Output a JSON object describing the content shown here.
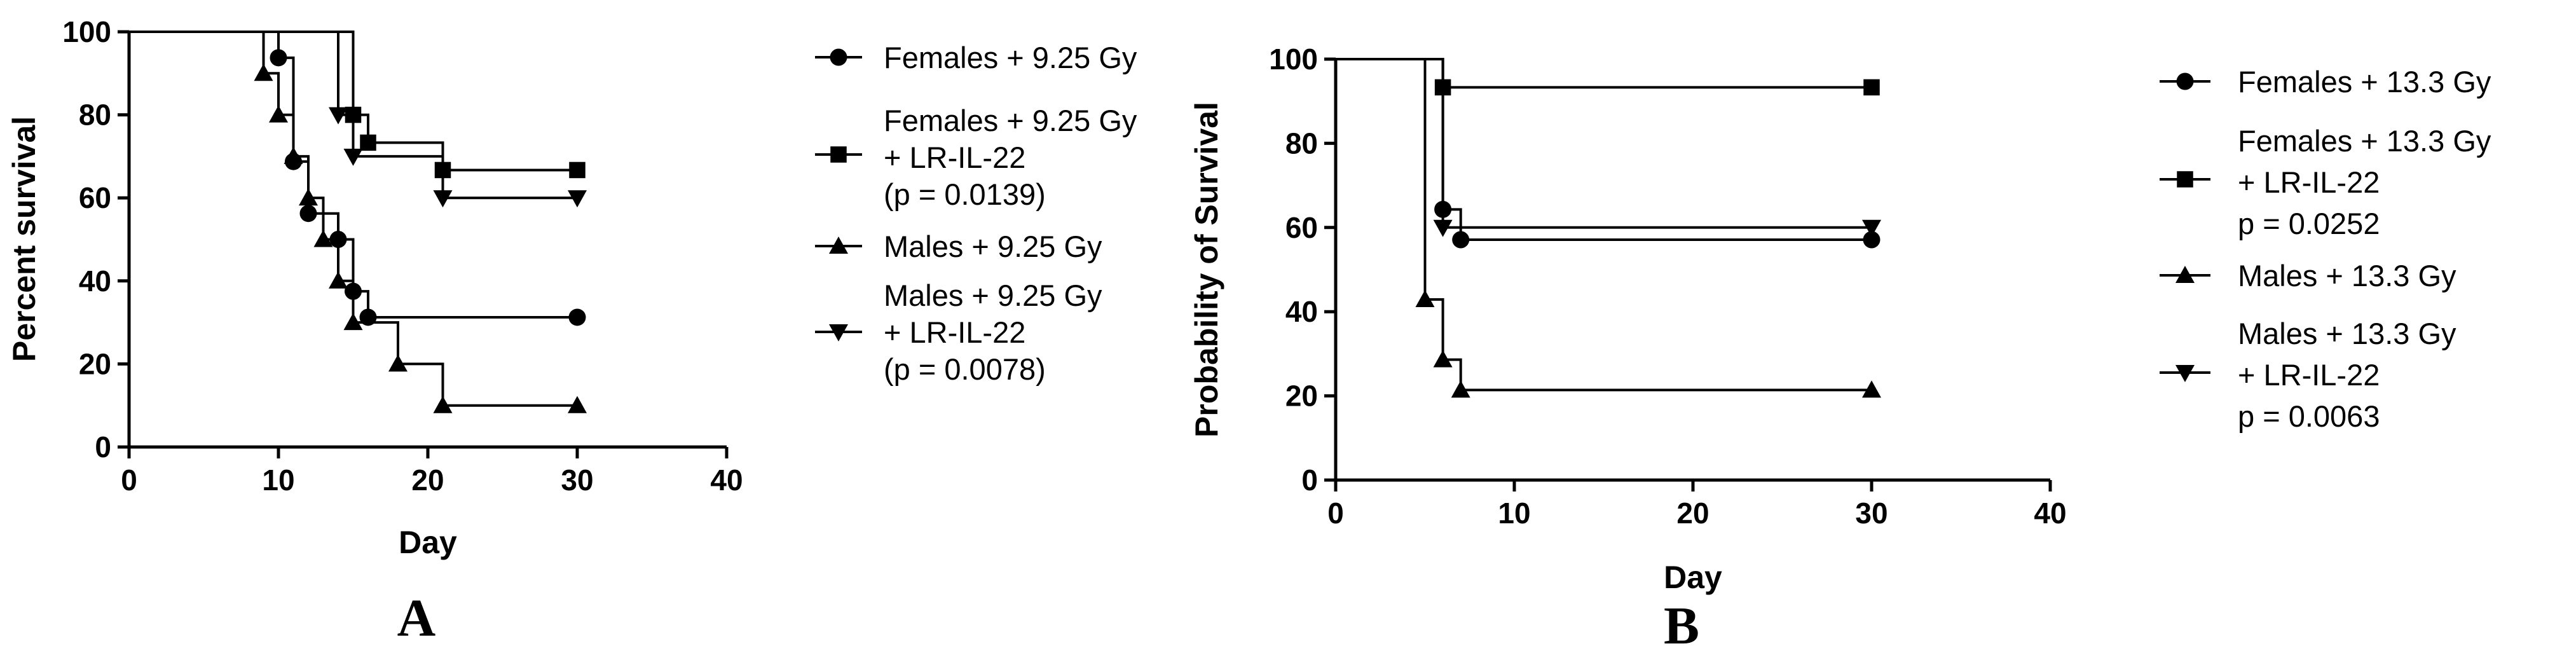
{
  "chart_data": [
    {
      "type": "line",
      "panel_label": "A",
      "xlabel": "Day",
      "ylabel": "Percent survival",
      "xlim": [
        0,
        40
      ],
      "ylim": [
        0,
        100
      ],
      "x_ticks": [
        "0",
        "10",
        "20",
        "30",
        "40"
      ],
      "y_ticks": [
        "0",
        "20",
        "40",
        "60",
        "80",
        "100"
      ],
      "grid": false,
      "legend_position": "right",
      "series": [
        {
          "name": "Females + 9.25 Gy",
          "marker": "circle",
          "steps": [
            [
              0,
              100
            ],
            [
              10,
              93.75
            ],
            [
              11,
              68.75
            ],
            [
              12,
              56.25
            ],
            [
              14,
              50
            ],
            [
              15,
              37.5
            ],
            [
              16,
              31.25
            ],
            [
              30,
              31.25
            ]
          ]
        },
        {
          "name": "Females + 9.25 Gy + LR-IL-22 (p = 0.0139)",
          "legend_lines": [
            "Females + 9.25 Gy",
            "+ LR-IL-22",
            "(p = 0.0139)"
          ],
          "marker": "square",
          "steps": [
            [
              0,
              100
            ],
            [
              15,
              80
            ],
            [
              16,
              73.3
            ],
            [
              21,
              66.7
            ],
            [
              30,
              66.7
            ]
          ]
        },
        {
          "name": "Males + 9.25 Gy",
          "marker": "triangle-up",
          "steps": [
            [
              0,
              100
            ],
            [
              9,
              90
            ],
            [
              10,
              80
            ],
            [
              11,
              70
            ],
            [
              12,
              60
            ],
            [
              13,
              50
            ],
            [
              14,
              40
            ],
            [
              15,
              30
            ],
            [
              18,
              20
            ],
            [
              21,
              10
            ],
            [
              30,
              10
            ]
          ]
        },
        {
          "name": "Males + 9.25 Gy + LR-IL-22 (p = 0.0078)",
          "legend_lines": [
            "Males + 9.25 Gy",
            "+ LR-IL-22",
            "(p = 0.0078)"
          ],
          "marker": "triangle-down",
          "steps": [
            [
              0,
              100
            ],
            [
              14,
              80
            ],
            [
              15,
              70
            ],
            [
              21,
              60
            ],
            [
              30,
              60
            ]
          ]
        }
      ]
    },
    {
      "type": "line",
      "panel_label": "B",
      "xlabel": "Day",
      "ylabel": "Probability of Survival",
      "xlim": [
        0,
        40
      ],
      "ylim": [
        0,
        100
      ],
      "x_ticks": [
        "0",
        "10",
        "20",
        "30",
        "40"
      ],
      "y_ticks": [
        "0",
        "20",
        "40",
        "60",
        "80",
        "100"
      ],
      "grid": false,
      "legend_position": "right",
      "series": [
        {
          "name": "Females + 13.3 Gy",
          "marker": "circle",
          "steps": [
            [
              0,
              100
            ],
            [
              6,
              64.3
            ],
            [
              7,
              57.1
            ],
            [
              30,
              57.1
            ]
          ]
        },
        {
          "name": "Females + 13.3 Gy + LR-IL-22 p = 0.0252",
          "legend_lines": [
            "Females + 13.3 Gy",
            "+ LR-IL-22",
            "p = 0.0252"
          ],
          "marker": "square",
          "steps": [
            [
              0,
              100
            ],
            [
              6,
              93.3
            ],
            [
              30,
              93.3
            ]
          ]
        },
        {
          "name": "Males + 13.3 Gy",
          "marker": "triangle-up",
          "steps": [
            [
              0,
              100
            ],
            [
              5,
              42.9
            ],
            [
              6,
              28.6
            ],
            [
              7,
              21.4
            ],
            [
              30,
              21.4
            ]
          ]
        },
        {
          "name": "Males + 13.3 Gy + LR-IL-22 p = 0.0063",
          "legend_lines": [
            "Males + 13.3 Gy",
            "+ LR-IL-22",
            "p = 0.0063"
          ],
          "marker": "triangle-down",
          "steps": [
            [
              0,
              100
            ],
            [
              6,
              60
            ],
            [
              30,
              60
            ]
          ]
        }
      ]
    }
  ]
}
